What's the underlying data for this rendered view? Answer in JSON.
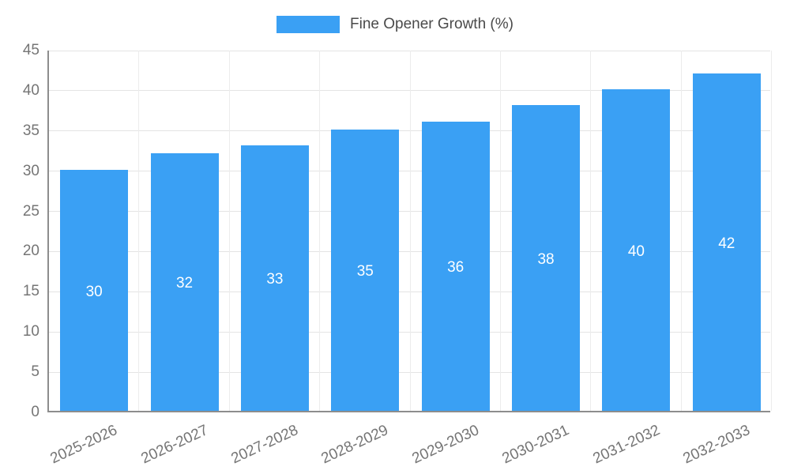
{
  "chart_data": {
    "type": "bar",
    "title": "",
    "legend": "Fine Opener Growth (%)",
    "legend_position": "top",
    "categories": [
      "2025-2026",
      "2026-2027",
      "2027-2028",
      "2028-2029",
      "2029-2030",
      "2030-2031",
      "2031-2032",
      "2032-2033"
    ],
    "values": [
      30,
      32,
      33,
      35,
      36,
      38,
      40,
      42
    ],
    "value_labels": [
      "30",
      "32",
      "33",
      "35",
      "36",
      "38",
      "40",
      "42"
    ],
    "xlabel": "",
    "ylabel": "",
    "ylim": [
      0,
      45
    ],
    "ytick_step": 5,
    "yticks": [
      0,
      5,
      10,
      15,
      20,
      25,
      30,
      35,
      40,
      45
    ],
    "x_label_rotation_deg": -25,
    "grid": "horizontal",
    "bar_color": "#3aa0f4",
    "value_label_color": "#ffffff",
    "tick_label_color": "#757575",
    "legend_text_color": "#4a4a4a",
    "grid_color": "#e4e4e4",
    "axis_color": "#8d8d8d"
  }
}
